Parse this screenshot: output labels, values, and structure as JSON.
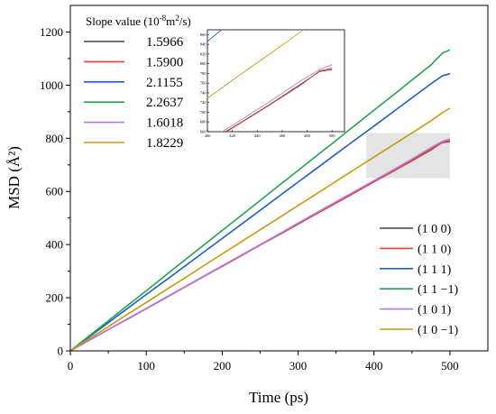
{
  "chart_data": {
    "type": "line",
    "xlabel": "Time (ps)",
    "ylabel": "MSD (Å²)",
    "xlim": [
      0,
      550
    ],
    "ylim": [
      0,
      1300
    ],
    "xticks": [
      "0",
      "100",
      "200",
      "300",
      "400",
      "500"
    ],
    "yticks": [
      "0",
      "200",
      "400",
      "600",
      "800",
      "1000",
      "1200"
    ],
    "x": [
      0,
      25,
      50,
      75,
      100,
      125,
      150,
      175,
      200,
      225,
      250,
      275,
      300,
      325,
      350,
      375,
      400,
      425,
      450,
      475,
      490,
      500
    ],
    "series": [
      {
        "name": "(1 0 0)",
        "color": "#404040",
        "values": [
          0,
          40,
          80,
          119,
          159,
          199,
          239,
          279,
          319,
          359,
          399,
          439,
          479,
          518,
          558,
          598,
          638,
          676,
          716,
          758,
          784,
          788
        ]
      },
      {
        "name": "(1 1 0)",
        "color": "#e8403a",
        "values": [
          0,
          40,
          80,
          119,
          159,
          199,
          239,
          279,
          318,
          358,
          398,
          437,
          477,
          517,
          556,
          596,
          636,
          675,
          715,
          756,
          785,
          791
        ]
      },
      {
        "name": "(1 1 1)",
        "color": "#1f5fbf",
        "values": [
          0,
          53,
          106,
          159,
          212,
          264,
          317,
          370,
          423,
          476,
          529,
          582,
          635,
          688,
          741,
          794,
          846,
          899,
          952,
          1005,
          1035,
          1043
        ]
      },
      {
        "name": "(1 1 −1)",
        "color": "#22a352",
        "values": [
          0,
          57,
          113,
          170,
          226,
          283,
          340,
          396,
          453,
          509,
          566,
          623,
          679,
          736,
          792,
          849,
          906,
          962,
          1019,
          1076,
          1120,
          1133
        ]
      },
      {
        "name": "(1 0 1)",
        "color": "#b07ee0",
        "values": [
          0,
          40,
          80,
          120,
          160,
          200,
          240,
          280,
          320,
          360,
          400,
          440,
          481,
          521,
          561,
          601,
          641,
          681,
          722,
          765,
          788,
          798
        ]
      },
      {
        "name": "(1 0 −1)",
        "color": "#c9990e",
        "values": [
          0,
          46,
          91,
          137,
          182,
          228,
          273,
          319,
          365,
          410,
          456,
          501,
          547,
          592,
          638,
          684,
          729,
          775,
          820,
          866,
          896,
          913
        ]
      }
    ],
    "slope_legend": {
      "title": "Slope value (10",
      "title_exp": "-8",
      "title_tail": "m",
      "title_tail_exp": "2",
      "title_end": "/s)",
      "values": [
        "1.5966",
        "1.5900",
        "2.1155",
        "2.2637",
        "1.6018",
        "1.8229"
      ]
    },
    "highlight": {
      "x": [
        390,
        500
      ],
      "y": [
        650,
        820
      ]
    },
    "inset": {
      "xlim": [
        400,
        510
      ],
      "ylim": [
        660,
        870
      ],
      "xticks": [
        "400",
        "420",
        "440",
        "460",
        "480",
        "500"
      ],
      "yticks": [
        "660",
        "680",
        "700",
        "720",
        "740",
        "760",
        "780",
        "800",
        "820",
        "840",
        "860"
      ]
    },
    "legend_position": "bottom-right",
    "grid": false
  }
}
